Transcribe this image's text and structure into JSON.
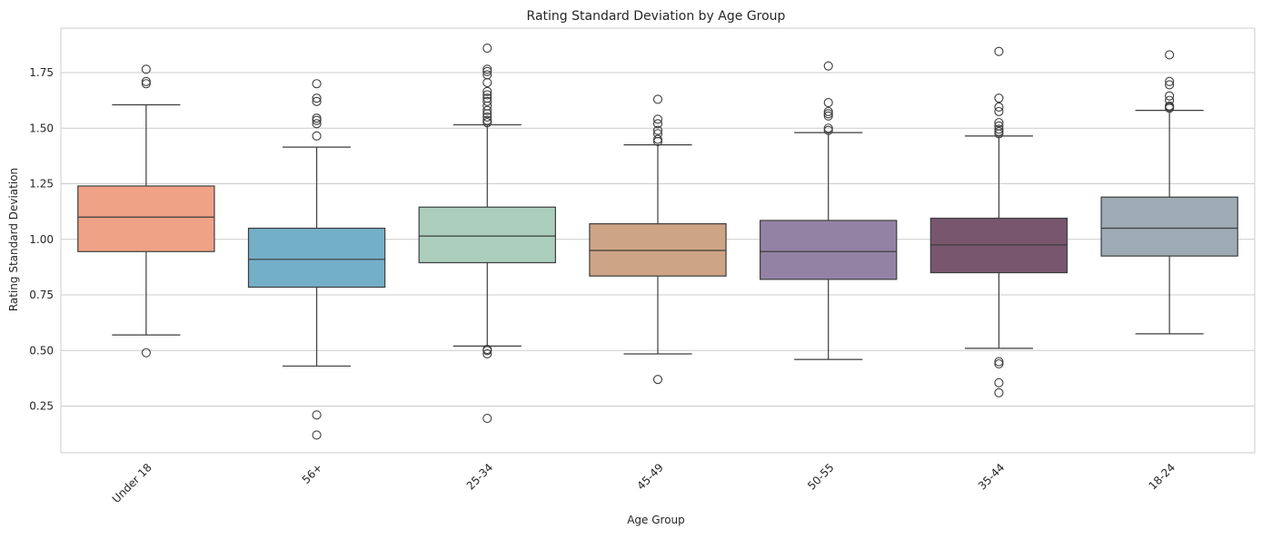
{
  "chart_data": {
    "type": "box",
    "title": "Rating Standard Deviation by Age Group",
    "xlabel": "Age Group",
    "ylabel": "Rating Standard Deviation",
    "ylim": [
      0.04,
      1.95
    ],
    "yticks": [
      0.25,
      0.5,
      0.75,
      1.0,
      1.25,
      1.5,
      1.75
    ],
    "ytick_labels": [
      "0.25",
      "0.50",
      "0.75",
      "1.00",
      "1.25",
      "1.50",
      "1.75"
    ],
    "grid": "horizontal",
    "x_tick_rotation": 45,
    "categories": [
      "Under 18",
      "56+",
      "25-34",
      "45-49",
      "50-55",
      "35-44",
      "18-24"
    ],
    "series": [
      {
        "category": "Under 18",
        "color": "#f0a286",
        "whisker_low": 0.57,
        "q1": 0.945,
        "median": 1.1,
        "q3": 1.24,
        "whisker_high": 1.605,
        "outliers": [
          0.49,
          1.7,
          1.71,
          1.765
        ]
      },
      {
        "category": "56+",
        "color": "#73b0c8",
        "whisker_low": 0.43,
        "q1": 0.785,
        "median": 0.91,
        "q3": 1.05,
        "whisker_high": 1.415,
        "outliers": [
          0.12,
          0.21,
          1.465,
          1.52,
          1.535,
          1.545,
          1.62,
          1.635,
          1.7
        ]
      },
      {
        "category": "25-34",
        "color": "#abcfbc",
        "whisker_low": 0.52,
        "q1": 0.895,
        "median": 1.015,
        "q3": 1.145,
        "whisker_high": 1.515,
        "outliers": [
          0.195,
          0.485,
          0.5,
          0.505,
          1.525,
          1.535,
          1.55,
          1.565,
          1.58,
          1.6,
          1.62,
          1.635,
          1.65,
          1.665,
          1.705,
          1.74,
          1.755,
          1.765,
          1.86
        ]
      },
      {
        "category": "45-49",
        "color": "#cea486",
        "whisker_low": 0.485,
        "q1": 0.835,
        "median": 0.95,
        "q3": 1.07,
        "whisker_high": 1.425,
        "outliers": [
          0.37,
          1.44,
          1.45,
          1.475,
          1.49,
          1.52,
          1.54,
          1.63
        ]
      },
      {
        "category": "50-55",
        "color": "#9482a5",
        "whisker_low": 0.46,
        "q1": 0.82,
        "median": 0.945,
        "q3": 1.085,
        "whisker_high": 1.48,
        "outliers": [
          1.49,
          1.5,
          1.555,
          1.565,
          1.575,
          1.615,
          1.78
        ]
      },
      {
        "category": "35-44",
        "color": "#78566e",
        "whisker_low": 0.51,
        "q1": 0.85,
        "median": 0.975,
        "q3": 1.095,
        "whisker_high": 1.465,
        "outliers": [
          0.31,
          0.355,
          0.44,
          0.45,
          1.475,
          1.485,
          1.495,
          1.51,
          1.525,
          1.575,
          1.595,
          1.635,
          1.845
        ]
      },
      {
        "category": "18-24",
        "color": "#9eabb4",
        "whisker_low": 0.575,
        "q1": 0.925,
        "median": 1.05,
        "q3": 1.19,
        "whisker_high": 1.58,
        "outliers": [
          1.59,
          1.595,
          1.6,
          1.625,
          1.645,
          1.695,
          1.71,
          1.83
        ]
      }
    ]
  }
}
